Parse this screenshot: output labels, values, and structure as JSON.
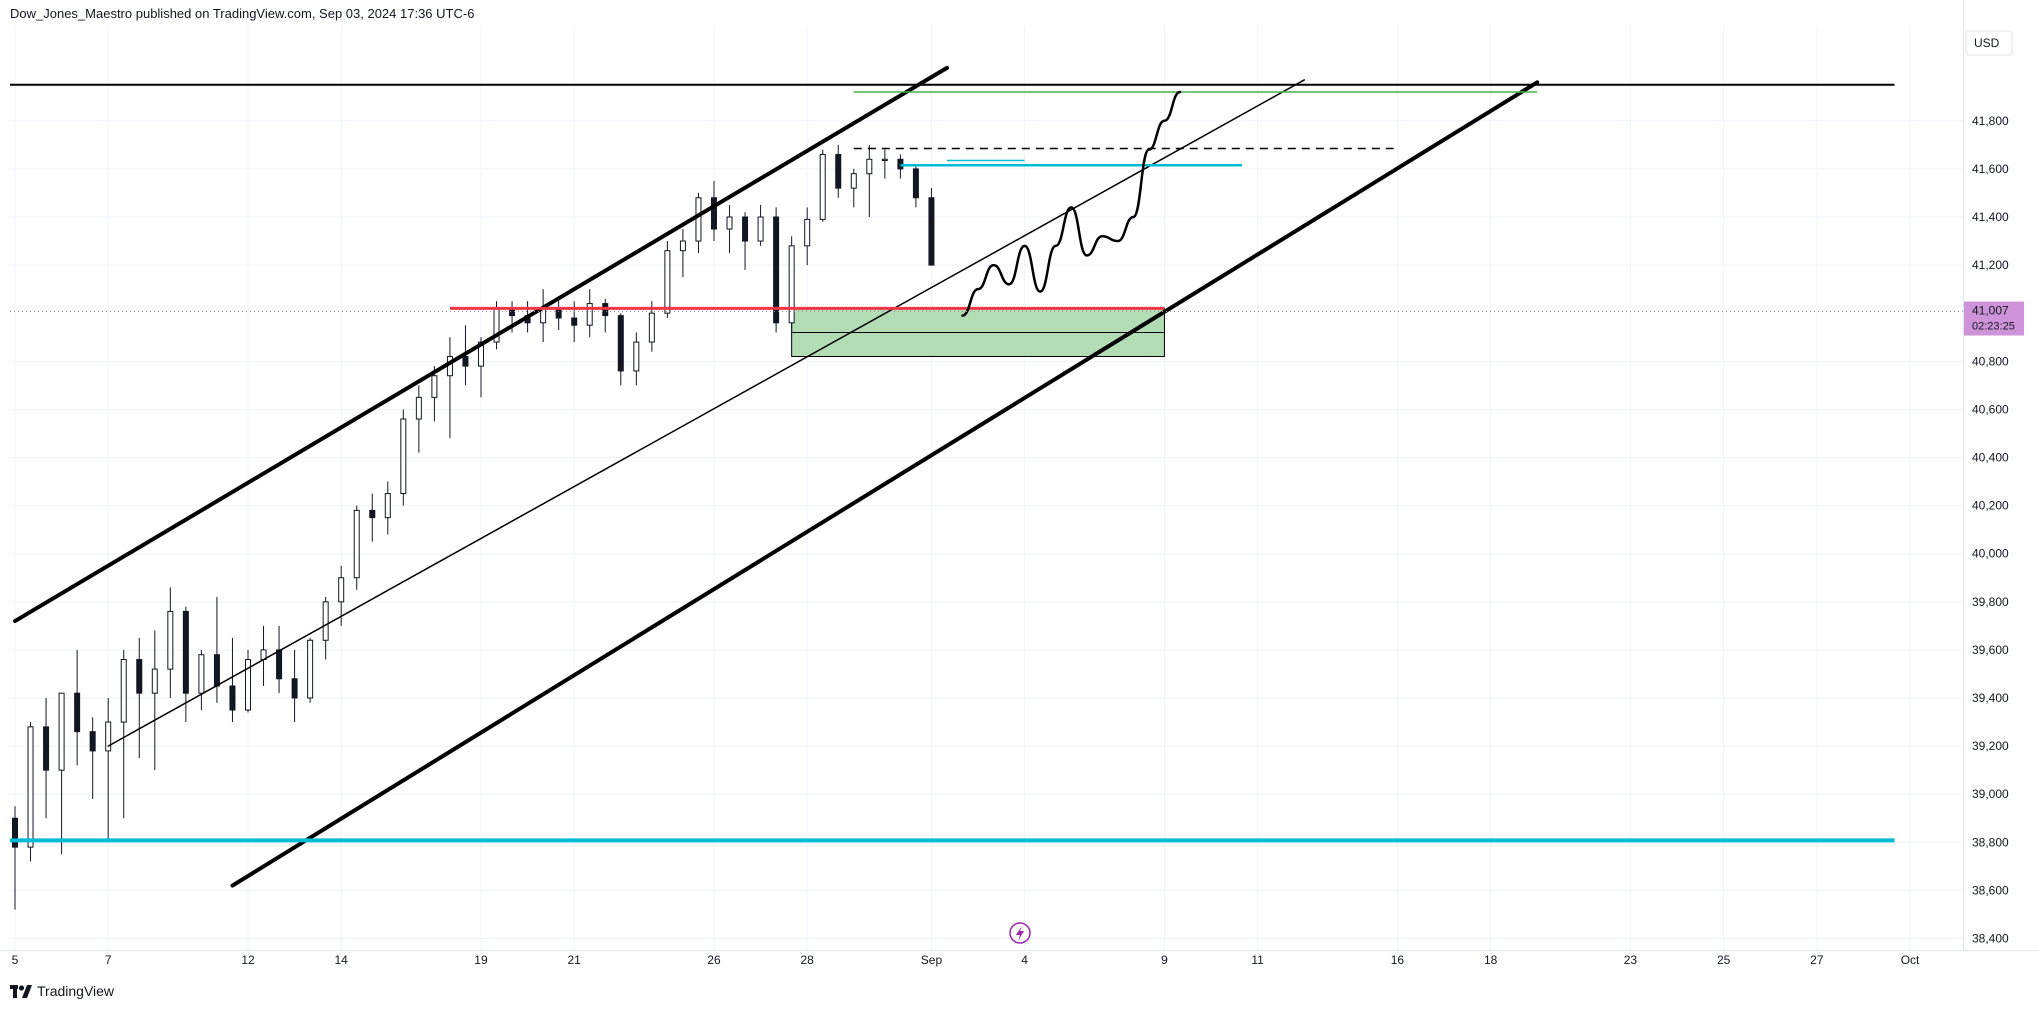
{
  "header": {
    "publisher_line": "Dow_Jones_Maestro published on TradingView.com, Sep 03, 2024 17:36 UTC-6"
  },
  "footer": {
    "brand": "TradingView"
  },
  "colors": {
    "background": "#ffffff",
    "grid": "#f0f3fa",
    "candle": "#131722",
    "channel": "#000000",
    "resistance_red": "#f23645",
    "support_cyan": "#00bcd4",
    "top_green": "#4caf50",
    "demand_zone": "#a5d6a7",
    "price_badge": "#ce93d8"
  },
  "chart_data": {
    "type": "candlestick",
    "currency_label": "USD",
    "y_axis": {
      "ylim": [
        38300,
        41990
      ],
      "ticks": [
        {
          "label": "41,800",
          "value": 41800
        },
        {
          "label": "41,600",
          "value": 41600
        },
        {
          "label": "41,400",
          "value": 41400
        },
        {
          "label": "41,200",
          "value": 41200
        },
        {
          "label": "40,800",
          "value": 40800
        },
        {
          "label": "40,600",
          "value": 40600
        },
        {
          "label": "40,400",
          "value": 40400
        },
        {
          "label": "40,200",
          "value": 40200
        },
        {
          "label": "40,000",
          "value": 40000
        },
        {
          "label": "39,800",
          "value": 39800
        },
        {
          "label": "39,600",
          "value": 39600
        },
        {
          "label": "39,400",
          "value": 39400
        },
        {
          "label": "39,200",
          "value": 39200
        },
        {
          "label": "39,000",
          "value": 39000
        },
        {
          "label": "38,800",
          "value": 38800
        },
        {
          "label": "38,600",
          "value": 38600
        },
        {
          "label": "38,400",
          "value": 38400
        }
      ]
    },
    "x_axis": {
      "xlim": [
        0,
        120
      ],
      "ticks": [
        {
          "label": "5",
          "t": 0
        },
        {
          "label": "7",
          "t": 6
        },
        {
          "label": "12",
          "t": 15
        },
        {
          "label": "14",
          "t": 21
        },
        {
          "label": "19",
          "t": 30
        },
        {
          "label": "21",
          "t": 36
        },
        {
          "label": "26",
          "t": 45
        },
        {
          "label": "28",
          "t": 51
        },
        {
          "label": "Sep",
          "t": 59
        },
        {
          "label": "4",
          "t": 65
        },
        {
          "label": "9",
          "t": 74
        },
        {
          "label": "11",
          "t": 80
        },
        {
          "label": "16",
          "t": 89
        },
        {
          "label": "18",
          "t": 95
        },
        {
          "label": "23",
          "t": 104
        },
        {
          "label": "25",
          "t": 110
        },
        {
          "label": "27",
          "t": 116
        },
        {
          "label": "Oct",
          "t": 122
        }
      ]
    },
    "last_price": {
      "value": 41007,
      "label": "41,007",
      "countdown": "02:23:25"
    },
    "candles": [
      [
        38900,
        38950,
        38520,
        38780
      ],
      [
        38780,
        39300,
        38720,
        39280
      ],
      [
        39280,
        39400,
        38900,
        39100
      ],
      [
        39100,
        39420,
        38750,
        39420
      ],
      [
        39420,
        39600,
        39120,
        39260
      ],
      [
        39260,
        39320,
        38980,
        39180
      ],
      [
        39180,
        39400,
        38800,
        39300
      ],
      [
        39300,
        39600,
        38900,
        39560
      ],
      [
        39560,
        39650,
        39150,
        39420
      ],
      [
        39420,
        39680,
        39100,
        39520
      ],
      [
        39520,
        39860,
        39400,
        39760
      ],
      [
        39760,
        39780,
        39300,
        39420
      ],
      [
        39420,
        39600,
        39350,
        39580
      ],
      [
        39580,
        39820,
        39380,
        39450
      ],
      [
        39450,
        39650,
        39300,
        39350
      ],
      [
        39350,
        39600,
        39340,
        39560
      ],
      [
        39560,
        39700,
        39450,
        39600
      ],
      [
        39600,
        39700,
        39420,
        39480
      ],
      [
        39480,
        39600,
        39300,
        39400
      ],
      [
        39400,
        39650,
        39380,
        39640
      ],
      [
        39640,
        39820,
        39560,
        39800
      ],
      [
        39800,
        39950,
        39700,
        39900
      ],
      [
        39900,
        40200,
        39850,
        40180
      ],
      [
        40180,
        40250,
        40050,
        40150
      ],
      [
        40150,
        40300,
        40080,
        40250
      ],
      [
        40250,
        40600,
        40200,
        40560
      ],
      [
        40560,
        40700,
        40420,
        40650
      ],
      [
        40650,
        40780,
        40550,
        40740
      ],
      [
        40740,
        40900,
        40480,
        40820
      ],
      [
        40820,
        40950,
        40700,
        40780
      ],
      [
        40780,
        40900,
        40650,
        40880
      ],
      [
        40880,
        41050,
        40850,
        41020
      ],
      [
        41020,
        41050,
        40920,
        40990
      ],
      [
        40990,
        41050,
        40920,
        40960
      ],
      [
        40960,
        41100,
        40880,
        41020
      ],
      [
        41020,
        41060,
        40930,
        40980
      ],
      [
        40980,
        41050,
        40880,
        40950
      ],
      [
        40950,
        41100,
        40900,
        41040
      ],
      [
        41040,
        41060,
        40920,
        40990
      ],
      [
        40990,
        41000,
        40700,
        40760
      ],
      [
        40760,
        40920,
        40700,
        40880
      ],
      [
        40880,
        41050,
        40840,
        41000
      ],
      [
        41000,
        41300,
        40980,
        41260
      ],
      [
        41260,
        41350,
        41150,
        41300
      ],
      [
        41300,
        41500,
        41250,
        41480
      ],
      [
        41480,
        41550,
        41300,
        41350
      ],
      [
        41350,
        41450,
        41250,
        41400
      ],
      [
        41400,
        41420,
        41180,
        41300
      ],
      [
        41300,
        41450,
        41280,
        41400
      ],
      [
        41400,
        41440,
        40920,
        40960
      ],
      [
        40960,
        41320,
        40920,
        41280
      ],
      [
        41280,
        41440,
        41200,
        41390
      ],
      [
        41390,
        41680,
        41380,
        41660
      ],
      [
        41660,
        41700,
        41480,
        41520
      ],
      [
        41520,
        41600,
        41440,
        41580
      ],
      [
        41580,
        41700,
        41400,
        41640
      ],
      [
        41640,
        41680,
        41560,
        41640
      ],
      [
        41640,
        41660,
        41560,
        41600
      ],
      [
        41600,
        41620,
        41440,
        41480
      ],
      [
        41480,
        41520,
        41200,
        41200
      ]
    ],
    "drawings": [
      {
        "kind": "trendline",
        "name": "channel-upper",
        "color": "#000000",
        "width": 4,
        "points": [
          [
            0,
            39720
          ],
          [
            60,
            42020
          ]
        ]
      },
      {
        "kind": "trendline",
        "name": "channel-lower",
        "color": "#000000",
        "width": 4,
        "points": [
          [
            14,
            38620
          ],
          [
            98,
            41960
          ]
        ]
      },
      {
        "kind": "trendline",
        "name": "channel-middle",
        "color": "#000000",
        "width": 1.5,
        "points": [
          [
            6,
            39200
          ],
          [
            83,
            41970
          ]
        ]
      },
      {
        "kind": "hline",
        "name": "top-black-line",
        "color": "#000000",
        "width": 2,
        "x0": -1,
        "x1": 121,
        "value": 41950
      },
      {
        "kind": "hline",
        "name": "top-green-line",
        "color": "#4caf50",
        "width": 1.5,
        "x0": 54,
        "x1": 98,
        "value": 41920
      },
      {
        "kind": "hline",
        "name": "high-dashed-line",
        "color": "#000000",
        "width": 1.5,
        "dashed": true,
        "x0": 54,
        "x1": 89,
        "value": 41685
      },
      {
        "kind": "hline",
        "name": "cyan-resistance",
        "color": "#00bcd4",
        "width": 2.5,
        "x0": 57,
        "x1": 79,
        "value": 41615
      },
      {
        "kind": "hline",
        "name": "cyan-resistance-short",
        "color": "#00bcd4",
        "width": 1.5,
        "x0": 60,
        "x1": 65,
        "value": 41635
      },
      {
        "kind": "hline",
        "name": "red-support",
        "color": "#f23645",
        "width": 3,
        "x0": 28,
        "x1": 74,
        "value": 41020
      },
      {
        "kind": "hline",
        "name": "cyan-support",
        "color": "#00bcd4",
        "width": 4,
        "x0": -1,
        "x1": 121,
        "value": 38808
      },
      {
        "kind": "box",
        "name": "demand-zone",
        "color": "#a5d6a7",
        "x0": 50,
        "x1": 74,
        "v0": 40820,
        "v1": 41020,
        "mid": 40920
      },
      {
        "kind": "path",
        "name": "projection-path",
        "color": "#000000",
        "width": 2.5,
        "points": [
          [
            61,
            40990
          ],
          [
            62,
            41100
          ],
          [
            63,
            41200
          ],
          [
            64,
            41120
          ],
          [
            65,
            41280
          ],
          [
            66,
            41090
          ],
          [
            67,
            41280
          ],
          [
            68,
            41440
          ],
          [
            69,
            41240
          ],
          [
            70,
            41320
          ],
          [
            71,
            41300
          ],
          [
            72,
            41400
          ],
          [
            73,
            41680
          ],
          [
            74,
            41800
          ],
          [
            75,
            41920
          ]
        ]
      }
    ]
  }
}
